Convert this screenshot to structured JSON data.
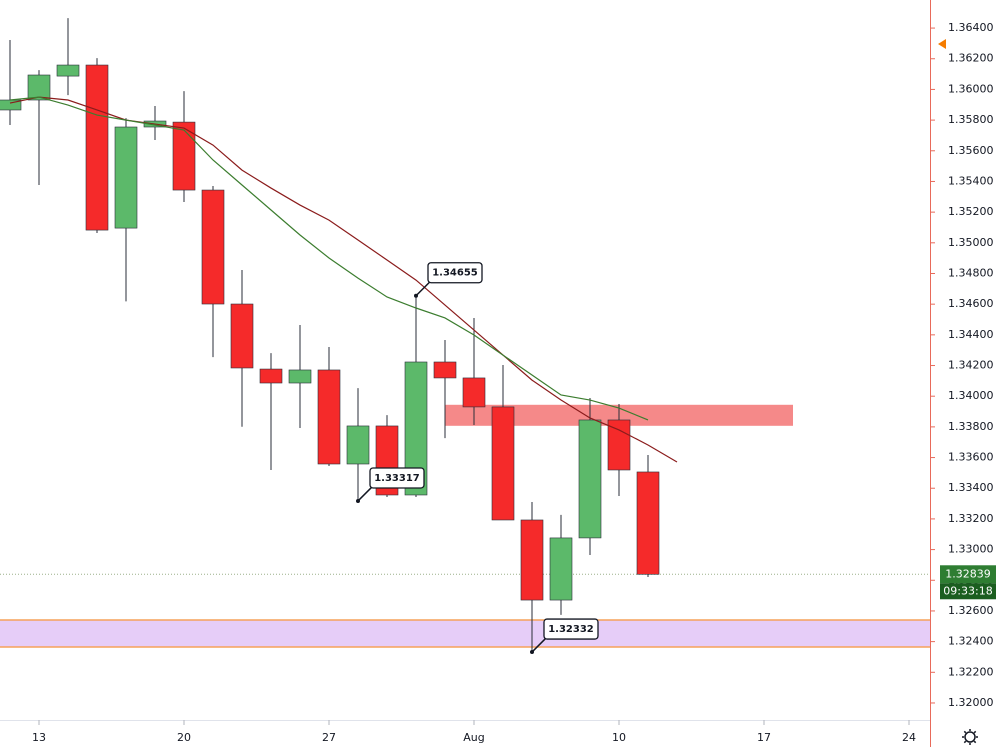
{
  "chart_data": {
    "type": "candlestick",
    "categories": [
      null,
      "13",
      null,
      null,
      null,
      null,
      "20",
      null,
      null,
      null,
      null,
      "27",
      null,
      null,
      null,
      null,
      "Aug",
      null,
      null,
      null,
      null,
      "10",
      null,
      null,
      null,
      null,
      "17",
      null,
      null,
      null,
      null,
      "24",
      null
    ],
    "open": [
      1.35866,
      1.35931,
      1.36087,
      1.36159,
      1.35096,
      1.35755,
      1.35787,
      1.35344,
      1.34601,
      1.34177,
      1.34086,
      1.34171,
      1.33558,
      1.33806,
      1.33356,
      1.34223,
      1.34119,
      1.3393,
      1.33193,
      1.32671,
      1.33076,
      1.33845,
      1.33506,
      null,
      null,
      null,
      null,
      null,
      null,
      null,
      null,
      null,
      null
    ],
    "high": [
      1.36322,
      1.36126,
      1.36465,
      1.36204,
      1.35813,
      1.35892,
      1.35989,
      1.3537,
      1.34823,
      1.34281,
      1.34464,
      1.34321,
      1.34053,
      1.33877,
      1.34655,
      1.34366,
      1.3451,
      1.34203,
      1.3331,
      1.33226,
      1.33988,
      1.33949,
      1.33617,
      null,
      null,
      null,
      null,
      null,
      null,
      null,
      null,
      null,
      null
    ],
    "low": [
      1.35768,
      1.35377,
      1.35963,
      1.35064,
      1.34618,
      1.3567,
      1.35266,
      1.34255,
      1.33801,
      1.33519,
      1.33793,
      1.33545,
      1.33317,
      1.33343,
      1.33343,
      1.33727,
      1.33812,
      1.33193,
      1.32332,
      1.32574,
      1.32965,
      1.33349,
      1.32821,
      null,
      null,
      null,
      null,
      null,
      null,
      null,
      null,
      null,
      null
    ],
    "close": [
      1.35931,
      1.36094,
      1.36159,
      1.35083,
      1.35755,
      1.35794,
      1.35344,
      1.34601,
      1.34184,
      1.34086,
      1.34171,
      1.33558,
      1.33806,
      1.33356,
      1.34223,
      1.34119,
      1.3393,
      1.33193,
      1.32671,
      1.33076,
      1.33845,
      1.33519,
      1.32839,
      null,
      null,
      null,
      null,
      null,
      null,
      null,
      null,
      null,
      null
    ],
    "up_color": "#5cb96a",
    "down_color": "#f52a2a",
    "series": [
      {
        "color": "#8b1c1c",
        "values": [
          1.35911,
          1.3595,
          1.35931,
          1.35866,
          1.358,
          1.35774,
          1.35748,
          1.35637,
          1.35474,
          1.35357,
          1.35246,
          1.35148,
          1.35018,
          1.34888,
          1.34757,
          1.34594,
          1.34431,
          1.34268,
          1.34105,
          1.33975,
          1.33858,
          1.3378,
          1.33682,
          1.33571,
          null,
          null,
          null,
          null,
          null,
          null,
          null,
          null,
          null
        ]
      },
      {
        "color": "#3c7d2f",
        "values": [
          1.35931,
          1.3595,
          1.35898,
          1.35833,
          1.358,
          1.35768,
          1.35735,
          1.3554,
          1.35377,
          1.35214,
          1.35051,
          1.34901,
          1.3477,
          1.34647,
          1.34575,
          1.3451,
          1.34399,
          1.34268,
          1.34138,
          1.34008,
          1.33975,
          1.33923,
          1.33845,
          null,
          null,
          null,
          null,
          null,
          null,
          null,
          null,
          null,
          null
        ]
      }
    ],
    "zones": [
      {
        "range": [
          1.33807,
          1.33944
        ],
        "from": 15,
        "to": 27,
        "color": "#f47c7c"
      },
      {
        "range": [
          1.32365,
          1.32541
        ],
        "color": "#e3c8f7",
        "border": "#f5a25a"
      }
    ],
    "annotations": [
      {
        "value": 1.34655,
        "index": 14
      },
      {
        "value": 1.33317,
        "index": 12
      },
      {
        "value": 1.32332,
        "index": 18
      }
    ],
    "last_price": {
      "value": 1.32839,
      "label": "1.32839"
    },
    "countdown": "09:33:18",
    "ylim": [
      1.31889,
      1.36583
    ],
    "yticks": [
      {
        "value": 1.32,
        "label": "1.32000"
      },
      {
        "value": 1.322,
        "label": "1.32200"
      },
      {
        "value": 1.324,
        "label": "1.32400"
      },
      {
        "value": 1.326,
        "label": "1.32600"
      },
      {
        "value": 1.328,
        "label": "1.32800"
      },
      {
        "value": 1.33,
        "label": "1.33000"
      },
      {
        "value": 1.332,
        "label": "1.33200"
      },
      {
        "value": 1.334,
        "label": "1.33400"
      },
      {
        "value": 1.336,
        "label": "1.33600"
      },
      {
        "value": 1.338,
        "label": "1.33800"
      },
      {
        "value": 1.34,
        "label": "1.34000"
      },
      {
        "value": 1.342,
        "label": "1.34200"
      },
      {
        "value": 1.344,
        "label": "1.34400"
      },
      {
        "value": 1.346,
        "label": "1.34600"
      },
      {
        "value": 1.348,
        "label": "1.34800"
      },
      {
        "value": 1.35,
        "label": "1.35000"
      },
      {
        "value": 1.352,
        "label": "1.35200"
      },
      {
        "value": 1.354,
        "label": "1.35400"
      },
      {
        "value": 1.356,
        "label": "1.35600"
      },
      {
        "value": 1.358,
        "label": "1.35800"
      },
      {
        "value": 1.36,
        "label": "1.36000"
      },
      {
        "value": 1.362,
        "label": "1.36200"
      },
      {
        "value": 1.364,
        "label": "1.36400"
      }
    ]
  }
}
